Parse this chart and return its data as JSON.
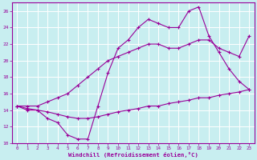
{
  "xlabel": "Windchill (Refroidissement éolien,°C)",
  "background_color": "#c8eef0",
  "grid_color": "#ffffff",
  "line_color": "#990099",
  "x_ticks": [
    0,
    1,
    2,
    3,
    4,
    5,
    6,
    7,
    8,
    9,
    10,
    11,
    12,
    13,
    14,
    15,
    16,
    17,
    18,
    19,
    20,
    21,
    22,
    23
  ],
  "ylim": [
    10,
    27
  ],
  "xlim": [
    -0.5,
    23.5
  ],
  "y_ticks": [
    10,
    12,
    14,
    16,
    18,
    20,
    22,
    24,
    26
  ],
  "line_flat_x": [
    0,
    1,
    2,
    3,
    4,
    5,
    6,
    7,
    8,
    9,
    10,
    11,
    12,
    13,
    14,
    15,
    16,
    17,
    18,
    19,
    20,
    21,
    22,
    23
  ],
  "line_flat_y": [
    14.5,
    14.2,
    14.0,
    13.8,
    13.5,
    13.2,
    13.0,
    13.0,
    13.2,
    13.5,
    13.8,
    14.0,
    14.2,
    14.5,
    14.5,
    14.8,
    15.0,
    15.2,
    15.5,
    15.5,
    15.8,
    16.0,
    16.2,
    16.5
  ],
  "line_mid_x": [
    0,
    1,
    2,
    3,
    4,
    5,
    6,
    7,
    8,
    9,
    10,
    11,
    12,
    13,
    14,
    15,
    16,
    17,
    18,
    19,
    20,
    21,
    22,
    23
  ],
  "line_mid_y": [
    14.5,
    14.5,
    14.5,
    15.0,
    15.5,
    16.0,
    17.0,
    18.0,
    19.0,
    20.0,
    20.5,
    21.0,
    21.5,
    22.0,
    22.0,
    21.5,
    21.5,
    22.0,
    22.5,
    22.5,
    21.5,
    21.0,
    20.5,
    23.0
  ],
  "line_jagged_x": [
    0,
    1,
    2,
    3,
    4,
    5,
    6,
    7,
    8,
    9,
    10,
    11,
    12,
    13,
    14,
    15,
    16,
    17,
    18,
    19,
    20,
    21,
    22,
    23
  ],
  "line_jagged_y": [
    14.5,
    14.0,
    14.0,
    13.0,
    12.5,
    11.0,
    10.5,
    10.5,
    14.5,
    18.5,
    21.5,
    22.5,
    24.0,
    25.0,
    24.5,
    24.0,
    24.0,
    26.0,
    26.5,
    23.0,
    21.0,
    19.0,
    17.5,
    16.5
  ]
}
